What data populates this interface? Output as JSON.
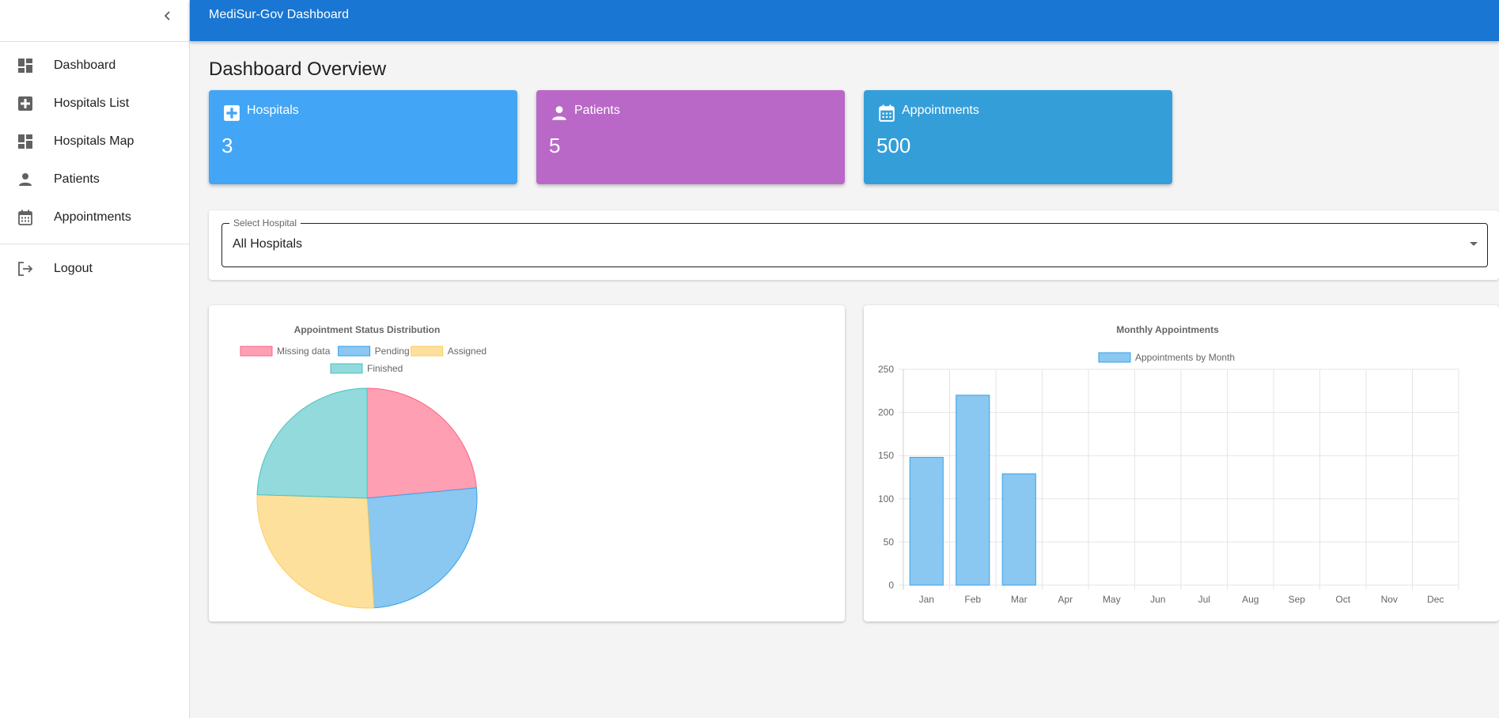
{
  "app": {
    "title": "MediSur-Gov Dashboard"
  },
  "sidebar": {
    "items": [
      {
        "label": "Dashboard",
        "icon": "dashboard-icon"
      },
      {
        "label": "Hospitals List",
        "icon": "hospital-icon"
      },
      {
        "label": "Hospitals Map",
        "icon": "dashboard-icon"
      },
      {
        "label": "Patients",
        "icon": "person-icon"
      },
      {
        "label": "Appointments",
        "icon": "calendar-icon"
      }
    ],
    "logout": {
      "label": "Logout",
      "icon": "logout-icon"
    }
  },
  "page": {
    "title": "Dashboard Overview"
  },
  "stats": [
    {
      "label": "Hospitals",
      "value": "3",
      "color": "#42a5f5",
      "icon": "hospital-icon"
    },
    {
      "label": "Patients",
      "value": "5",
      "color": "#ba68c8",
      "icon": "person-icon"
    },
    {
      "label": "Appointments",
      "value": "500",
      "color": "#349ed9",
      "icon": "calendar-icon"
    }
  ],
  "hospital_select": {
    "label": "Select Hospital",
    "value": "All Hospitals"
  },
  "chart_data": [
    {
      "type": "pie",
      "title": "Appointment Status Distribution",
      "categories": [
        "Missing data",
        "Pending",
        "Assigned",
        "Finished"
      ],
      "values": [
        23.5,
        25.5,
        26.5,
        24.5
      ],
      "colors": [
        "#ff9fb3",
        "#8ac7f1",
        "#fde09c",
        "#92dadb"
      ],
      "borders": [
        "#ff6384",
        "#36a2eb",
        "#ffce56",
        "#4bc0c0"
      ],
      "legend": "top"
    },
    {
      "type": "bar",
      "title": "Monthly Appointments",
      "series": [
        {
          "name": "Appointments by Month",
          "values": [
            148,
            220,
            129,
            0,
            0,
            0,
            0,
            0,
            0,
            0,
            0,
            0
          ]
        }
      ],
      "categories": [
        "Jan",
        "Feb",
        "Mar",
        "Apr",
        "May",
        "Jun",
        "Jul",
        "Aug",
        "Sep",
        "Oct",
        "Nov",
        "Dec"
      ],
      "ylim": [
        0,
        250
      ],
      "yticks": [
        "0",
        "50",
        "100",
        "150",
        "200",
        "250"
      ],
      "ytick_values": [
        0,
        50,
        100,
        150,
        200,
        250
      ],
      "bar_color": "#8ac7f1",
      "bar_border": "#36a2eb",
      "legend": "top"
    }
  ]
}
